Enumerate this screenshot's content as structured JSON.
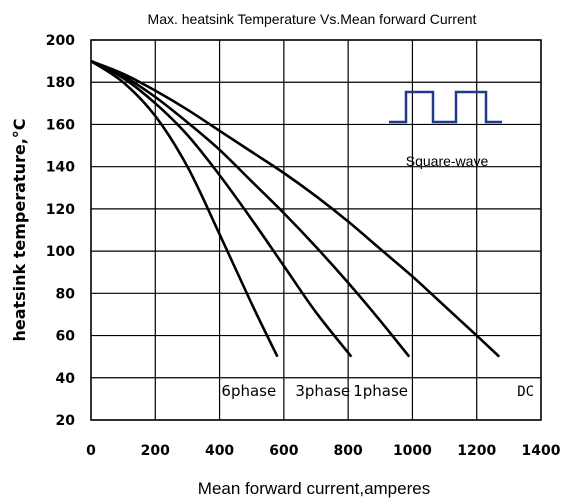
{
  "chart_data": {
    "type": "line",
    "title": "Max. heatsink Temperature Vs.Mean forward Current",
    "xlabel": "Mean forward current,amperes",
    "ylabel": "heatsink temperature,°C",
    "xlim": [
      0,
      1400
    ],
    "ylim": [
      20,
      200
    ],
    "x_ticks": [
      "0",
      "200",
      "400",
      "600",
      "800",
      "1000",
      "1200",
      "1400"
    ],
    "y_ticks": [
      "20",
      "40",
      "60",
      "80",
      "100",
      "120",
      "140",
      "160",
      "180",
      "200"
    ],
    "grid": true,
    "inset_label": "Square-wave",
    "line_color": "#000000",
    "inset_color": "#1f3a8a",
    "series": [
      {
        "name": "6phase",
        "x": [
          0,
          100,
          200,
          300,
          400,
          500,
          580
        ],
        "y": [
          190,
          180,
          164,
          140,
          108,
          75,
          50
        ]
      },
      {
        "name": "3phase",
        "x": [
          0,
          100,
          200,
          300,
          400,
          500,
          600,
          700,
          810
        ],
        "y": [
          190,
          182,
          170,
          155,
          136,
          115,
          93,
          71,
          50
        ]
      },
      {
        "name": "1phase",
        "x": [
          0,
          100,
          200,
          300,
          400,
          500,
          600,
          700,
          800,
          900,
          990
        ],
        "y": [
          190,
          183,
          173,
          161,
          148,
          133,
          118,
          102,
          85,
          67,
          50
        ]
      },
      {
        "name": "DC",
        "x": [
          0,
          100,
          200,
          300,
          400,
          500,
          600,
          700,
          800,
          900,
          1000,
          1100,
          1200,
          1270
        ],
        "y": [
          190,
          184,
          176,
          167,
          157,
          147,
          137,
          126,
          114,
          101,
          88,
          74,
          60,
          50
        ]
      }
    ]
  }
}
